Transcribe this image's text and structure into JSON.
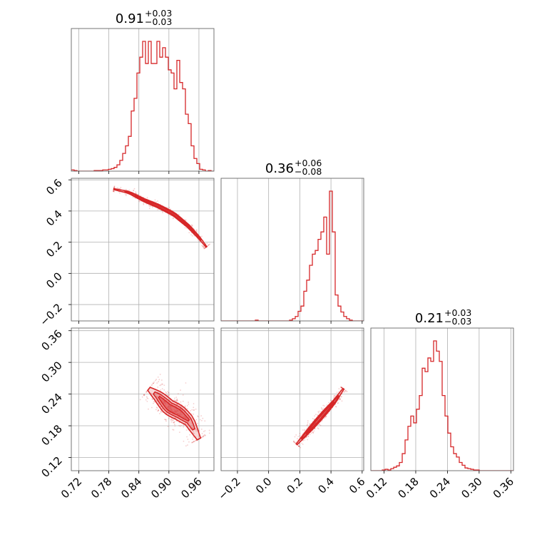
{
  "chart_data": {
    "type": "corner",
    "color": "#d62728",
    "parameters": [
      {
        "title_value": "0.91",
        "title_plus": "+0.03",
        "title_minus": "−0.03",
        "range": [
          0.705,
          0.99
        ],
        "ticks": [
          0.72,
          0.78,
          0.84,
          0.9,
          0.96
        ],
        "tick_labels": [
          "0.72",
          "0.78",
          "0.84",
          "0.90",
          "0.96"
        ]
      },
      {
        "title_value": "0.36",
        "title_plus": "+0.06",
        "title_minus": "−0.08",
        "range": [
          -0.305,
          0.61
        ],
        "ticks": [
          -0.2,
          0.0,
          0.2,
          0.4,
          0.6
        ],
        "tick_labels": [
          "−0.2",
          "0.0",
          "0.2",
          "0.4",
          "0.6"
        ]
      },
      {
        "title_value": "0.21",
        "title_plus": "+0.03",
        "title_minus": "−0.03",
        "range": [
          0.095,
          0.365
        ],
        "ticks": [
          0.12,
          0.18,
          0.24,
          0.3,
          0.36
        ],
        "tick_labels": [
          "0.12",
          "0.18",
          "0.24",
          "0.30",
          "0.36"
        ]
      }
    ],
    "histograms": [
      {
        "bin_start": 0.705,
        "bin_width": 0.0057,
        "counts": [
          2,
          1,
          0,
          0,
          0,
          0,
          0,
          0,
          1,
          1,
          1,
          2,
          2,
          3,
          4,
          6,
          10,
          17,
          28,
          40,
          55,
          95,
          115,
          155,
          180,
          205,
          170,
          205,
          170,
          170,
          205,
          180,
          195,
          180,
          160,
          155,
          130,
          175,
          140,
          130,
          90,
          75,
          40,
          20,
          12,
          3,
          2,
          0,
          1,
          0
        ]
      },
      {
        "bin_start": -0.305,
        "bin_width": 0.0183,
        "counts": [
          0,
          0,
          0,
          0,
          0,
          0,
          0,
          0,
          0,
          0,
          0,
          0,
          1,
          0,
          0,
          0,
          0,
          0,
          0,
          0,
          0,
          0,
          0,
          0,
          1,
          3,
          6,
          13,
          20,
          40,
          55,
          75,
          90,
          95,
          110,
          120,
          140,
          90,
          175,
          120,
          35,
          20,
          12,
          6,
          3,
          1,
          0,
          0,
          0,
          0
        ]
      },
      {
        "bin_start": 0.095,
        "bin_width": 0.0054,
        "counts": [
          0,
          0,
          0,
          0,
          1,
          2,
          1,
          3,
          5,
          7,
          12,
          25,
          45,
          65,
          80,
          70,
          90,
          110,
          150,
          145,
          165,
          160,
          190,
          175,
          160,
          110,
          80,
          55,
          35,
          25,
          20,
          12,
          8,
          4,
          3,
          2,
          1,
          1,
          0,
          0,
          0,
          0,
          0,
          0,
          0,
          0,
          0,
          0,
          0,
          0
        ]
      }
    ],
    "correlations": [
      {
        "pair": [
          0,
          1
        ],
        "ridge": [
          [
            0.79,
            0.54
          ],
          [
            0.82,
            0.52
          ],
          [
            0.85,
            0.47
          ],
          [
            0.88,
            0.43
          ],
          [
            0.91,
            0.38
          ],
          [
            0.94,
            0.3
          ],
          [
            0.96,
            0.23
          ],
          [
            0.975,
            0.17
          ]
        ],
        "width": 0.012,
        "contours_center": [
          0.91,
          0.37
        ]
      },
      {
        "pair": [
          0,
          2
        ],
        "ridge": [
          [
            0.86,
            0.25
          ],
          [
            0.88,
            0.235
          ],
          [
            0.9,
            0.215
          ],
          [
            0.92,
            0.205
          ],
          [
            0.94,
            0.19
          ],
          [
            0.96,
            0.155
          ]
        ],
        "width": 0.016,
        "contours_center": [
          0.91,
          0.21
        ]
      },
      {
        "pair": [
          1,
          2
        ],
        "ridge": [
          [
            0.18,
            0.145
          ],
          [
            0.24,
            0.165
          ],
          [
            0.3,
            0.185
          ],
          [
            0.36,
            0.205
          ],
          [
            0.42,
            0.225
          ],
          [
            0.48,
            0.25
          ]
        ],
        "width": 0.016,
        "contours_center": [
          0.36,
          0.21
        ]
      }
    ],
    "grid": true,
    "xlabel": "",
    "ylabel": ""
  }
}
